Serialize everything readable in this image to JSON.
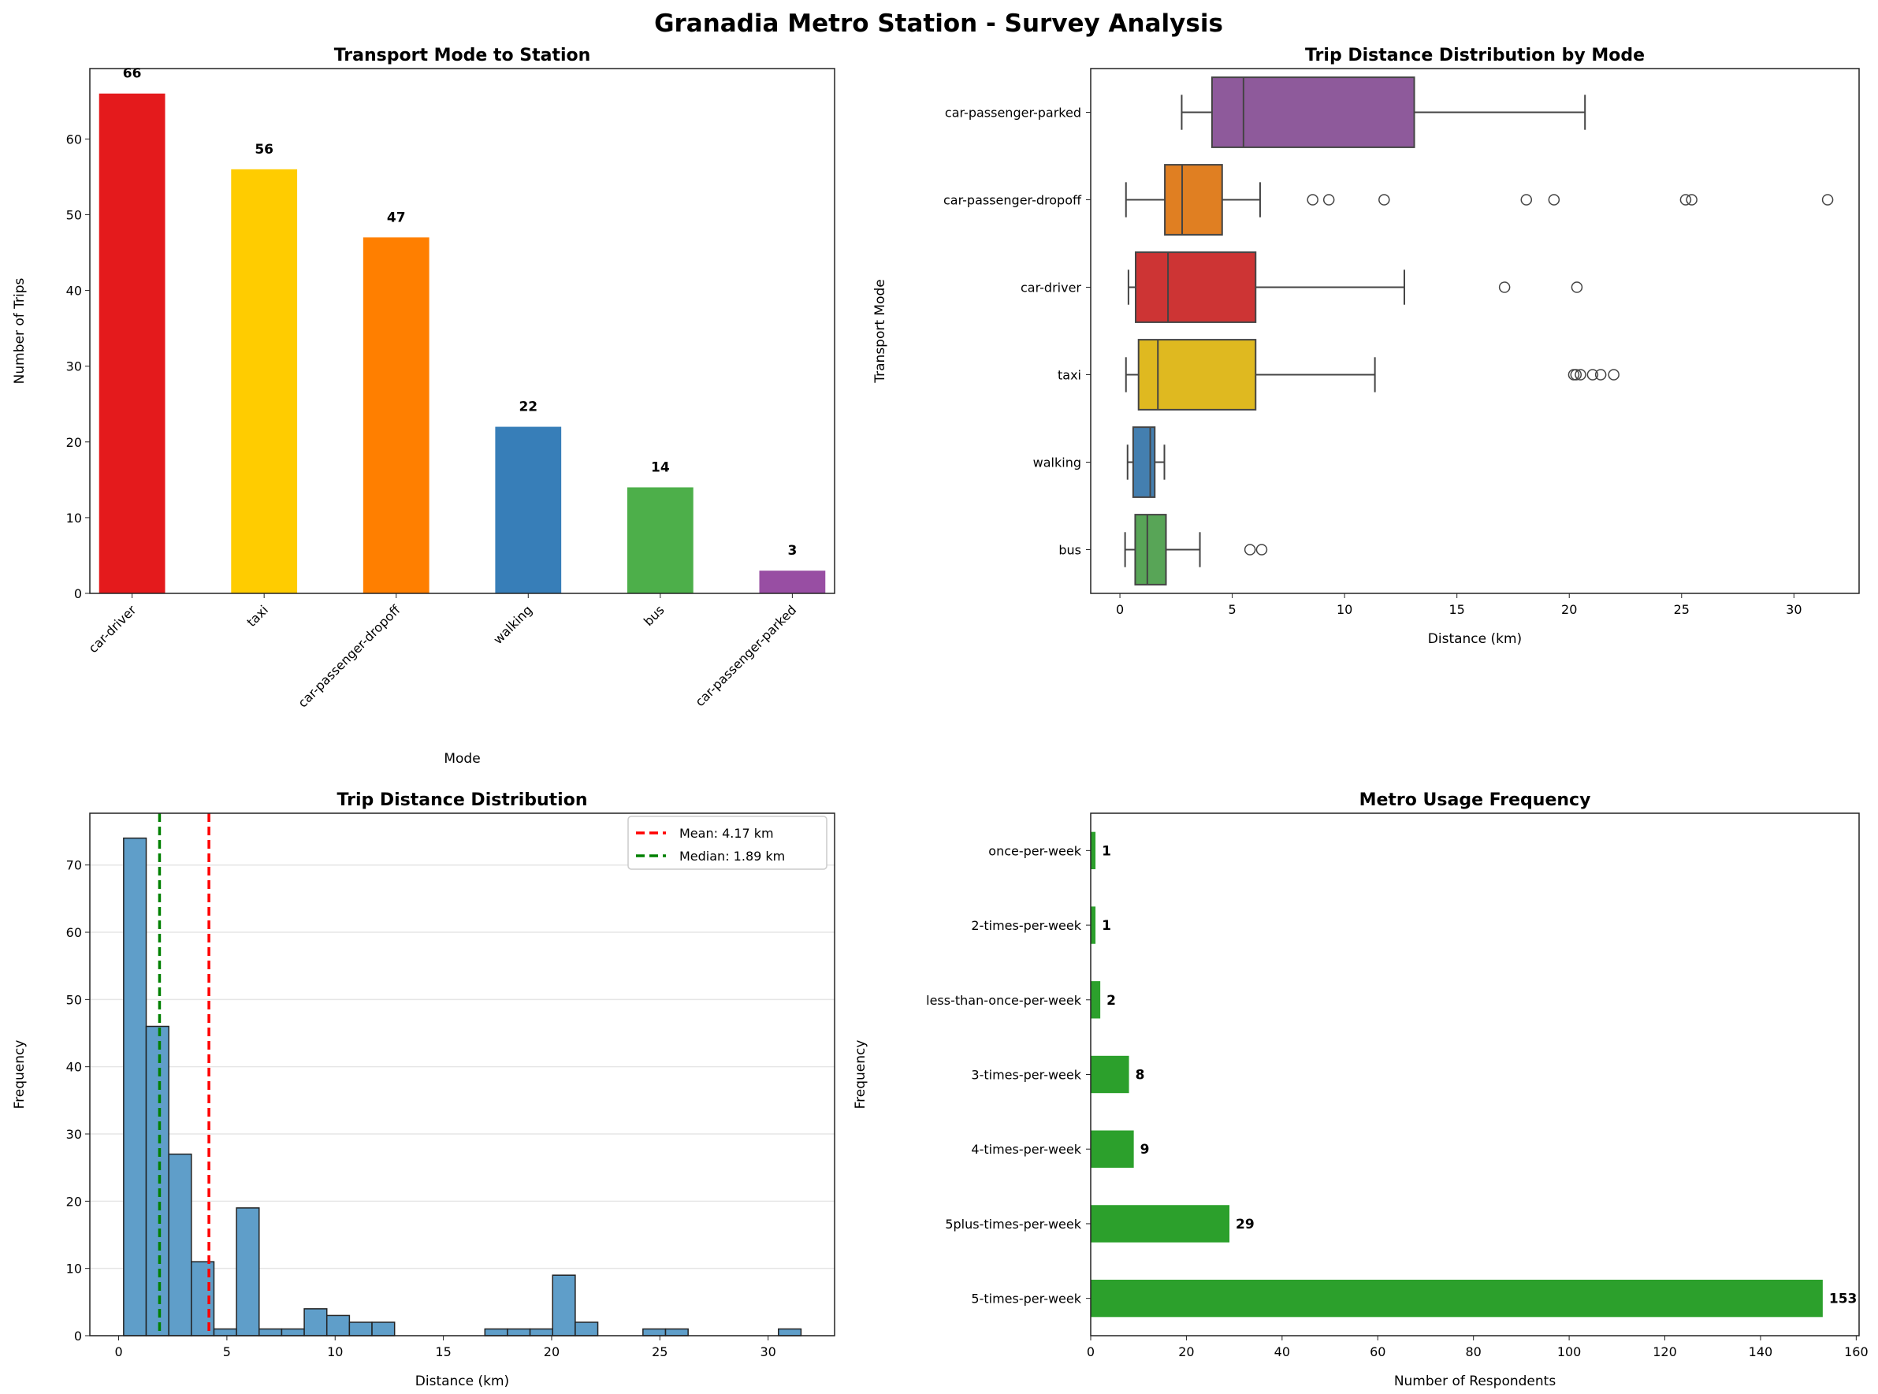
{
  "title": "Granadia Metro Station - Survey Analysis",
  "chart_data": [
    {
      "type": "bar",
      "title": "Transport Mode to Station",
      "xlabel": "Mode",
      "ylabel": "Number of Trips",
      "categories": [
        "car-driver",
        "taxi",
        "car-passenger-dropoff",
        "walking",
        "bus",
        "car-passenger-parked"
      ],
      "values": [
        66,
        56,
        47,
        22,
        14,
        3
      ],
      "colors": [
        "#e41a1c",
        "#ffcc00",
        "#ff7f00",
        "#377eb8",
        "#4daf4a",
        "#984ea3"
      ],
      "ylim": [
        0,
        69.3
      ],
      "yticks": [
        0,
        10,
        20,
        30,
        40,
        50,
        60
      ],
      "data_labels": true,
      "grid": false
    },
    {
      "type": "boxplot",
      "title": "Trip Distance Distribution by Mode",
      "xlabel": "Distance (km)",
      "ylabel": "Transport Mode",
      "xlim": [
        -1.3,
        32.9
      ],
      "xticks": [
        0,
        5,
        10,
        15,
        20,
        25,
        30
      ],
      "series": [
        {
          "name": "car-passenger-parked",
          "color": "#8e5a9b",
          "whislo": 2.75,
          "q1": 4.1,
          "med": 5.5,
          "q3": 13.1,
          "whishi": 20.7,
          "fliers": []
        },
        {
          "name": "car-passenger-dropoff",
          "color": "#e07f22",
          "whislo": 0.27,
          "q1": 2.0,
          "med": 2.77,
          "q3": 4.55,
          "whishi": 6.24,
          "fliers": [
            8.58,
            9.3,
            11.76,
            18.09,
            19.32,
            25.18,
            25.45,
            31.5
          ]
        },
        {
          "name": "car-driver",
          "color": "#cd3434",
          "whislo": 0.38,
          "q1": 0.7,
          "med": 2.14,
          "q3": 6.04,
          "whishi": 12.66,
          "fliers": [
            17.12,
            20.34
          ]
        },
        {
          "name": "taxi",
          "color": "#dfb920",
          "whislo": 0.27,
          "q1": 0.83,
          "med": 1.69,
          "q3": 6.04,
          "whishi": 11.35,
          "fliers": [
            20.2,
            20.3,
            20.5,
            21.04,
            21.4,
            21.98
          ]
        },
        {
          "name": "walking",
          "color": "#447fb0",
          "whislo": 0.34,
          "q1": 0.59,
          "med": 1.35,
          "q3": 1.55,
          "whishi": 1.98,
          "fliers": []
        },
        {
          "name": "bus",
          "color": "#58a557",
          "whislo": 0.23,
          "q1": 0.68,
          "med": 1.22,
          "q3": 2.05,
          "whishi": 3.56,
          "fliers": [
            5.79,
            6.31
          ]
        }
      ]
    },
    {
      "type": "histogram",
      "title": "Trip Distance Distribution",
      "xlabel": "Distance (km)",
      "ylabel": "Frequency",
      "color": "#5f9ec9",
      "bin_start": 0.23,
      "bin_width": 1.043,
      "counts": [
        74,
        46,
        27,
        11,
        1,
        19,
        1,
        1,
        4,
        3,
        2,
        2,
        0,
        0,
        0,
        0,
        1,
        1,
        1,
        9,
        2,
        0,
        0,
        1,
        1,
        0,
        0,
        0,
        0,
        1
      ],
      "xlim": [
        -1.33,
        33.07
      ],
      "ylim": [
        0,
        77.7
      ],
      "xticks": [
        0,
        5,
        10,
        15,
        20,
        25,
        30
      ],
      "yticks": [
        0,
        10,
        20,
        30,
        40,
        50,
        60,
        70
      ],
      "grid": "y",
      "legend_position": "top-right",
      "reference_lines": [
        {
          "label": "Mean: 4.17 km",
          "value": 4.17,
          "color": "#ff0000"
        },
        {
          "label": "Median: 1.89 km",
          "value": 1.89,
          "color": "#008000"
        }
      ]
    },
    {
      "type": "barh",
      "title": "Metro Usage Frequency",
      "xlabel": "Number of Respondents",
      "ylabel": "Frequency",
      "color": "#2ca02c",
      "categories": [
        "5-times-per-week",
        "5plus-times-per-week",
        "4-times-per-week",
        "3-times-per-week",
        "less-than-once-per-week",
        "2-times-per-week",
        "once-per-week"
      ],
      "values": [
        153,
        29,
        9,
        8,
        2,
        1,
        1
      ],
      "xlim": [
        0,
        160.6
      ],
      "xticks": [
        0,
        20,
        40,
        60,
        80,
        100,
        120,
        140,
        160
      ],
      "data_labels": true
    }
  ]
}
